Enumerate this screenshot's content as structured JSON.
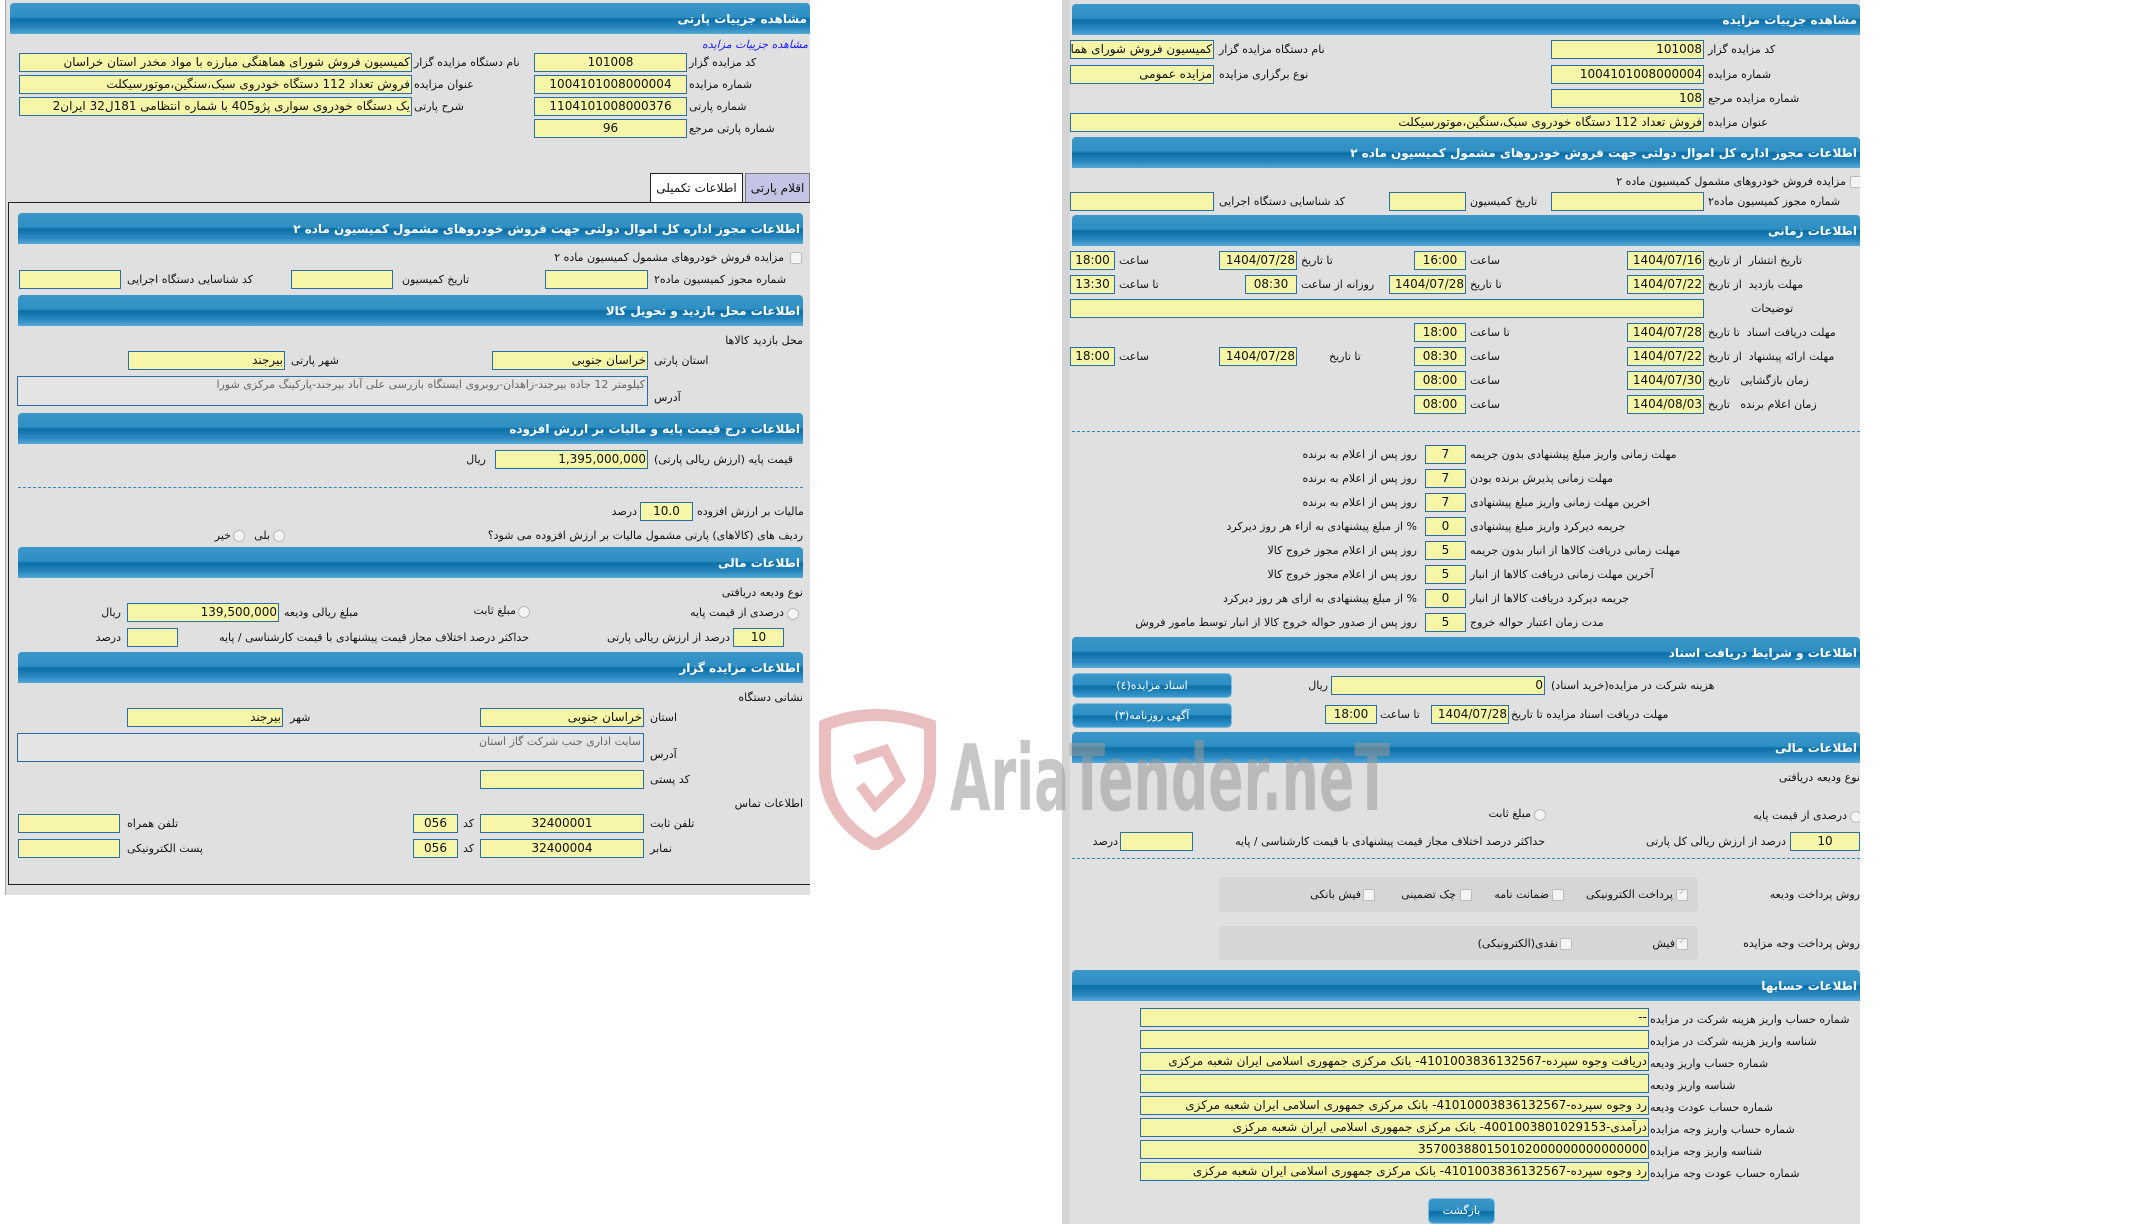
{
  "colors": {
    "header": "#2f8fc3",
    "field": "#f7f5a8",
    "panel": "#e0e0e0",
    "link": "#1a1aff"
  },
  "watermark": {
    "text": "AriaTender.neT",
    "icon": "shield-logo-icon"
  },
  "lot": {
    "title": "مشاهده جزییات پارتی",
    "auction_link": "مشاهده جزییات مزایده",
    "auctioneer_name_label": "نام دستگاه مزایده گزار",
    "auctioneer_name": "کمیسیون فروش شورای هماهنگی مبارزه با مواد مخدر استان خراسان",
    "auctioneer_code_label": "کد مزایده گزار",
    "auctioneer_code": "101008",
    "auction_title_label": "عنوان مزایده",
    "auction_title": "فروش تعداد 112 دستگاه خودروی سبک،سنگین،موتورسیکلت",
    "auction_number_label": "شماره مزایده",
    "auction_number": "1004101008000004",
    "lot_desc_label": "شرح پارتی",
    "lot_desc": "یک دستگاه خودروی سواری پژو405  با شماره انتظامی 181ل32 ایران2",
    "lot_number_label": "شماره پارتی",
    "lot_number": "1104101008000376",
    "lot_ref_label": "شماره پارتی مرجع",
    "lot_ref": "96",
    "tabs": [
      {
        "label": "اطلاعات تکمیلی",
        "active": true
      },
      {
        "label": "اقلام پارتی",
        "active": false
      }
    ],
    "permit": {
      "title": "اطلاعات مجوز اداره کل اموال دولتی جهت فروش خودروهای مشمول کمیسیون ماده ۲",
      "checkbox_label": "مزایده فروش خودروهای مشمول کمیسیون ماده ۲",
      "permit_no_label": "شماره مجوز کمیسیون ماده۲",
      "date_label": "تاریخ کمیسیون",
      "exec_code_label": "کد شناسایی دستگاه اجرایی"
    },
    "visit": {
      "title": "اطلاعات محل بازدید و تحویل کالا",
      "place_label": "محل بازدید کالاها",
      "province_label": "استان پارتی",
      "province": "خراسان جنوبی",
      "city_label": "شهر پارتی",
      "city": "بیرجند",
      "address_label": "آدرس",
      "address": "کیلومتر 12 جاده بیرجند-زاهدان-روبروی ایستگاه بازرسی علی آباد بیرجند-پارکینگ مرکزی شورا"
    },
    "price": {
      "title": "اطلاعات درج قیمت پایه و مالیات بر ارزش افزوده",
      "base_label": "قیمت پایه (ارزش ریالی پارتی)",
      "base": "1,395,000,000",
      "rial": "ریال",
      "vat_label": "مالیات بر ارزش افزوده",
      "vat": "10.0",
      "percent": "درصد",
      "vat_q": "ردیف های (کالاهای) پارتی مشمول مالیات بر ارزش افزوده می شود؟",
      "yes": "بلی",
      "no": "خیر"
    },
    "finance": {
      "title": "اطلاعات مالی",
      "deposit_type": "نوع ودیعه دریافتی",
      "pct_label": "درصدی از قیمت پایه",
      "fixed_label": "مبلغ ثابت",
      "deposit_amount_label": "مبلغ ریالی ودیعه",
      "deposit_amount": "139,500,000",
      "rial": "ریال",
      "pct_of_label": "درصد از ارزش ریالی پارتی",
      "pct": "10",
      "max_diff_label": "حداکثر درصد اختلاف مجاز قیمت پیشنهادی با قیمت کارشناسی / پایه",
      "percent": "درصد"
    },
    "auctioneer": {
      "title": "اطلاعات مزایده گزار",
      "address_title": "نشانی دستگاه",
      "province_label": "استان",
      "province": "خراسان جنوبی",
      "city_label": "شهر",
      "city": "بیرجند",
      "address_label": "آدرس",
      "address": "سایت اداری جنب شرکت گاز استان",
      "postal_label": "کد پستی",
      "contact_title": "اطلاعات تماس",
      "phone_label": "تلفن ثابت",
      "phone": "32400001",
      "code_label": "کد",
      "phone_code": "056",
      "mobile_label": "تلفن همراه",
      "fax_label": "نمابر",
      "fax": "32400004",
      "fax_code": "056",
      "email_label": "پست الکترونیکی"
    }
  },
  "auction": {
    "title": "مشاهده جزییات مزایده",
    "code_label": "کد مزایده گزار",
    "code": "101008",
    "org_label": "نام دستگاه مزایده گزار",
    "org": "کمیسیون فروش شورای هماهنگی مبارزه با مواد مخدر استان خراسان",
    "number_label": "شماره مزایده",
    "number": "1004101008000004",
    "type_label": "نوع برگزاری مزایده",
    "type": "مزایده عمومی",
    "ref_label": "شماره مزایده مرجع",
    "ref": "108",
    "title_label": "عنوان مزایده",
    "auction_title": "فروش تعداد 112 دستگاه خودروی سبک،سنگین،موتورسیکلت",
    "permit": {
      "title": "اطلاعات مجوز اداره کل اموال دولتی جهت فروش خودروهای مشمول کمیسیون ماده ۲",
      "checkbox_label": "مزایده فروش خودروهای مشمول کمیسیون ماده ۲",
      "permit_no_label": "شماره مجوز کمیسیون ماده۲",
      "date_label": "تاریخ کمیسیون",
      "exec_code_label": "کد شناسایی دستگاه اجرایی"
    },
    "time": {
      "title": "اطلاعات زمانی",
      "publish": {
        "label": "تاریخ انتشار  از تاریخ",
        "from": "1404/07/16",
        "t1_label": "ساعت",
        "t1": "16:00",
        "to_label": "تا تاریخ",
        "to": "1404/07/28",
        "t2_label": "ساعت",
        "t2": "18:00"
      },
      "visit": {
        "label": "مهلت بازدید  از تاریخ",
        "from": "1404/07/22",
        "to_label": "تا تاریخ",
        "to": "1404/07/28",
        "daily_label": "روزانه از ساعت",
        "t1": "08:30",
        "t2_label": "تا ساعت",
        "t2": "13:30"
      },
      "notes_label": "توضیحات",
      "docs": {
        "label": "مهلت دریافت اسناد  تا تاریخ",
        "to": "1404/07/28",
        "t_label": "تا ساعت",
        "t": "18:00"
      },
      "offer": {
        "label": "مهلت ارائه پیشنهاد  از تاریخ",
        "from": "1404/07/22",
        "t1_label": "ساعت",
        "t1": "08:30",
        "to_label": "تا تاریخ",
        "to": "1404/07/28",
        "t2_label": "ساعت",
        "t2": "18:00"
      },
      "opening": {
        "label": "زمان بازگشایی   تاریخ",
        "date": "1404/07/30",
        "t_label": "ساعت",
        "t": "08:00"
      },
      "winner": {
        "label": "زمان اعلام برنده   تاریخ",
        "date": "1404/08/03",
        "t_label": "ساعت",
        "t": "08:00"
      }
    },
    "deadlines": [
      {
        "label": "مهلت زمانی واریز مبلغ پیشنهادی بدون جریمه",
        "value": "7",
        "suffix": "روز پس از اعلام به برنده"
      },
      {
        "label": "مهلت زمانی پذیرش برنده بودن",
        "value": "7",
        "suffix": "روز پس از اعلام به برنده"
      },
      {
        "label": "اخرین مهلت زمانی واریز مبلغ پیشنهادی",
        "value": "7",
        "suffix": "روز پس از اعلام به برنده"
      },
      {
        "label": "جریمه دیرکرد واریز مبلغ پیشنهادی",
        "value": "0",
        "suffix": "% از مبلغ پیشنهادی به ازاء هر روز دیرکرد"
      },
      {
        "label": "مهلت زمانی دریافت کالاها از انبار بدون جریمه",
        "value": "5",
        "suffix": "روز پس از اعلام مجوز خروج کالا"
      },
      {
        "label": "آخرین مهلت زمانی دریافت کالاها از انبار",
        "value": "5",
        "suffix": "روز پس از اعلام مجوز خروج کالا"
      },
      {
        "label": "جریمه دیرکرد دریافت کالاها از انبار",
        "value": "0",
        "suffix": "% از مبلغ پیشنهادی به ازای هر روز دیرکرد"
      },
      {
        "label": "مدت زمان اعتبار حواله خروج",
        "value": "5",
        "suffix": "روز پس از صدور حواله خروج کالا از انبار توسط مامور فروش"
      }
    ],
    "docs": {
      "title": "اطلاعات و شرایط دریافت اسناد",
      "docs_button": "اسناد مزایده(٤)",
      "news_button": "آگهی روزنامه(۳)",
      "fee_label": "هزینه شرکت در مزایده(خرید اسناد)",
      "fee": "0",
      "rial": "ریال",
      "deadline_label": "مهلت دریافت اسناد مزایده تا تاریخ",
      "deadline": "1404/07/28",
      "time_label": "تا ساعت",
      "time": "18:00"
    },
    "finance": {
      "title": "اطلاعات مالی",
      "deposit_type": "نوع ودیعه دریافتی",
      "pct_label": "درصدی از قیمت پایه",
      "fixed_label": "مبلغ ثابت",
      "pct": "10",
      "pct_of_label": "درصد از ارزش ریالی کل پارتی",
      "max_diff_label": "حداکثر درصد اختلاف مجاز قیمت پیشنهادی با قیمت کارشناسی / پایه",
      "percent": "درصد",
      "deposit_pay_label": "روش پرداخت ودیعه",
      "deposit_methods": [
        {
          "label": "پرداخت الکترونیکی",
          "checked": true
        },
        {
          "label": "ضمانت نامه",
          "checked": false
        },
        {
          "label": "چک تضمینی",
          "checked": false
        },
        {
          "label": "فیش بانکی",
          "checked": false
        }
      ],
      "payment_label": "روش پرداخت وجه مزایده",
      "payment_methods": [
        {
          "label": "فیش",
          "checked": true
        },
        {
          "label": "نقدی(الکترونیکی)",
          "checked": false
        }
      ]
    },
    "accounts": {
      "title": "اطلاعات حسابها",
      "rows": [
        {
          "label": "شماره حساب واریز هزینه شرکت در مزایده",
          "value": "--"
        },
        {
          "label": "شناسه واریز هزینه شرکت در مزایده",
          "value": ""
        },
        {
          "label": "شماره حساب واریز ودیعه",
          "value": "دریافت وجوه سپرده-4101003836132567- بانک مرکزی جمهوری اسلامی ایران شعبه مرکزی"
        },
        {
          "label": "شناسه واریز ودیعه",
          "value": ""
        },
        {
          "label": "شماره حساب عودت ودیعه",
          "value": "رد وجوه سپرده-41010003836132567- بانک مرکزی جمهوری اسلامی ایران شعبه مرکزی"
        },
        {
          "label": "شماره حساب واریز وجه مزایده",
          "value": "درآمدی-4001003801029153- بانک مرکزی جمهوری اسلامی ایران شعبه مرکزی"
        },
        {
          "label": "شناسه واریز وجه مزایده",
          "value": "357003880150102000000000000000"
        },
        {
          "label": "شماره حساب عودت وجه مزایده",
          "value": "رد وجوه سپرده-4101003836132567- بانک مرکزی جمهوری اسلامی ایران شعبه مرکزی"
        }
      ]
    },
    "back_button": "بازگشت"
  }
}
